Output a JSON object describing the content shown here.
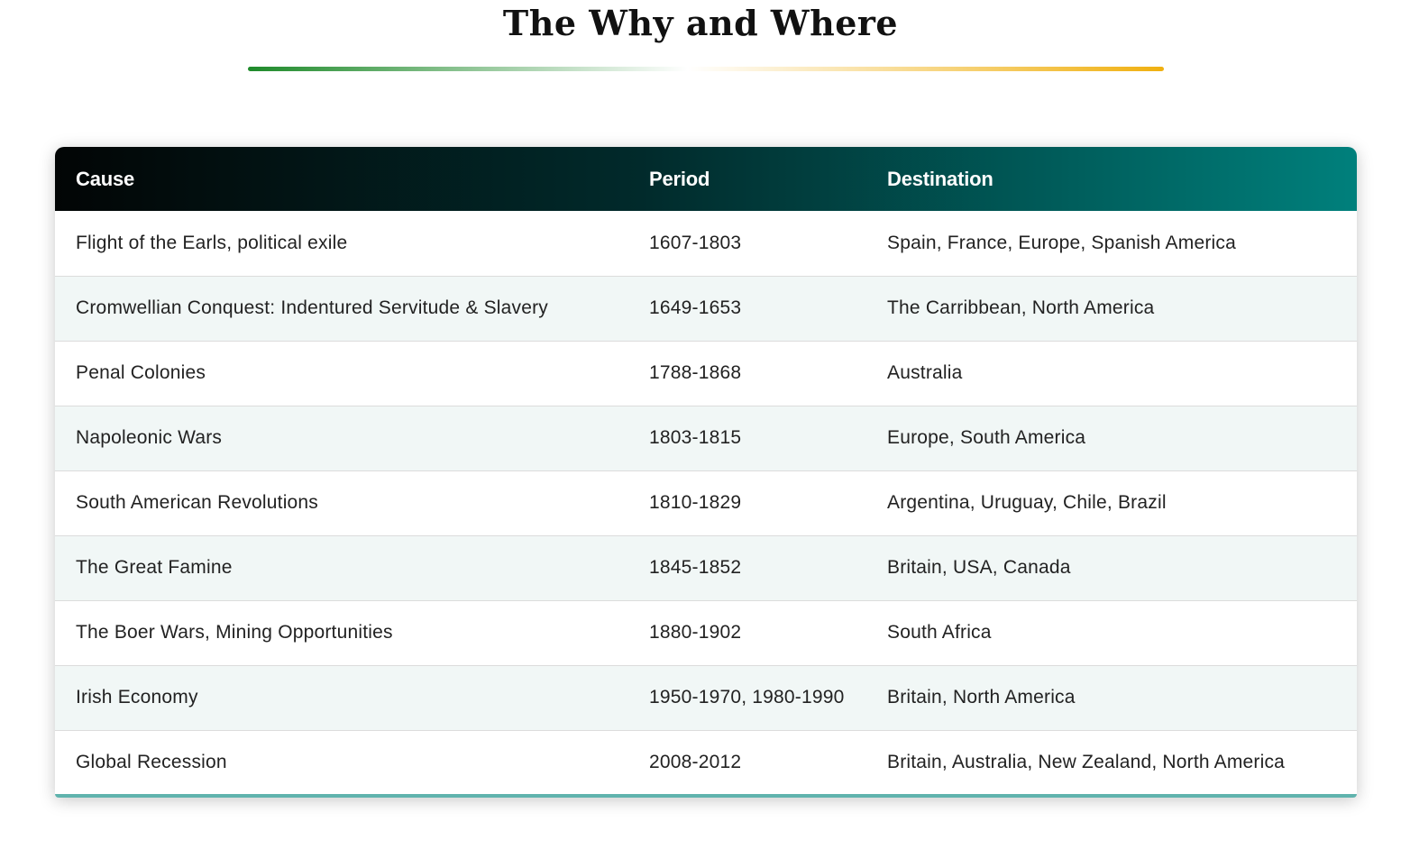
{
  "page": {
    "title": "The Why and Where"
  },
  "colors": {
    "underline_left": "#1e8a2a",
    "underline_right": "#f0b010",
    "header_left": "#020505",
    "header_mid": "#012a2b",
    "header_right": "#00807c",
    "bottom_bar": "#5fb3ad",
    "row_alt": "#f1f7f6"
  },
  "table": {
    "headers": [
      "Cause",
      "Period",
      "Destination"
    ],
    "rows": [
      [
        "Flight of the Earls, political exile",
        "1607-1803",
        "Spain, France, Europe, Spanish America"
      ],
      [
        "Cromwellian Conquest: Indentured Servitude & Slavery",
        "1649-1653",
        "The Carribbean, North America"
      ],
      [
        "Penal Colonies",
        "1788-1868",
        "Australia"
      ],
      [
        "Napoleonic Wars",
        "1803-1815",
        "Europe, South America"
      ],
      [
        "South American Revolutions",
        "1810-1829",
        "Argentina, Uruguay, Chile, Brazil"
      ],
      [
        "The Great Famine",
        "1845-1852",
        "Britain, USA, Canada"
      ],
      [
        "The Boer Wars, Mining Opportunities",
        "1880-1902",
        "South Africa"
      ],
      [
        "Irish Economy",
        "1950-1970, 1980-1990",
        "Britain, North America"
      ],
      [
        "Global Recession",
        "2008-2012",
        "Britain, Australia, New Zealand, North America"
      ]
    ]
  }
}
